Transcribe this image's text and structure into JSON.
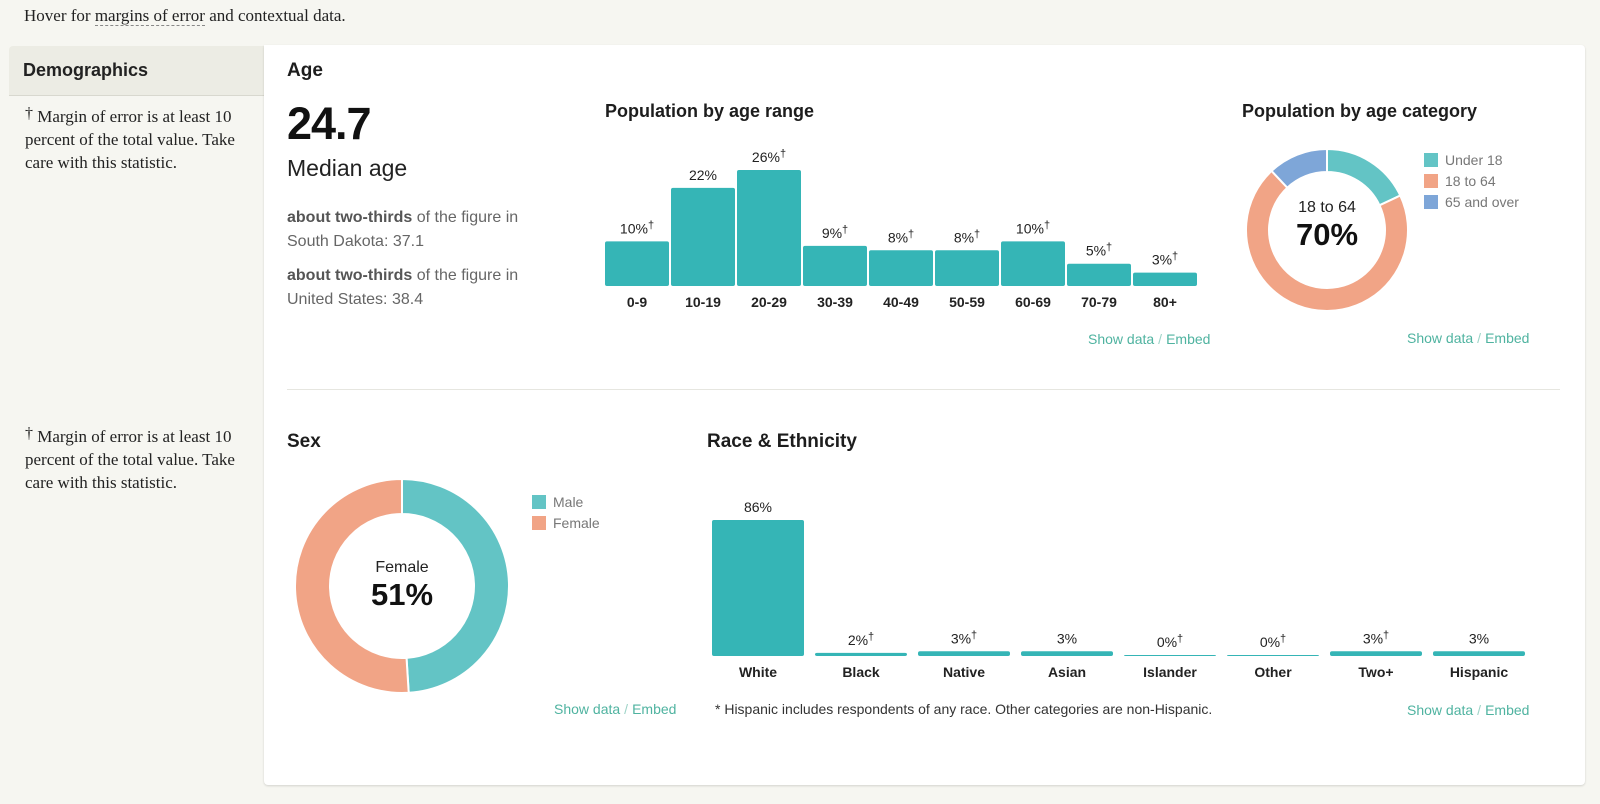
{
  "intro": {
    "prefix": "Hover for ",
    "link": "margins of error",
    "suffix": " and contextual data."
  },
  "sidebar": {
    "title": "Demographics"
  },
  "moe_note": {
    "dagger": "†",
    "text": "Margin of error is at least 10 percent of the total value. Take care with this statistic."
  },
  "age": {
    "title": "Age",
    "median_value": "24.7",
    "median_label": "Median age",
    "comparisons": [
      {
        "bold": "about two-thirds",
        "rest": " of the figure in South Dakota: 37.1"
      },
      {
        "bold": "about two-thirds",
        "rest": " of the figure in United States: 38.4"
      }
    ]
  },
  "links": {
    "show_data": "Show data",
    "separator": "/",
    "embed": "Embed"
  },
  "sex": {
    "title": "Sex",
    "center_label": "Female",
    "center_value": "51%"
  },
  "race": {
    "title": "Race & Ethnicity",
    "footnote": "* Hispanic includes respondents of any race. Other categories are non-Hispanic."
  },
  "age_category": {
    "title": "Population by age category",
    "center_label": "18 to 64",
    "center_value": "70%"
  },
  "colors": {
    "teal": "#35b5b6",
    "teal_light": "#63c4c5",
    "salmon": "#f1a486",
    "blue": "#7ea6d8",
    "link": "#4fb3a0"
  },
  "chart_data": [
    {
      "type": "bar",
      "title": "Population by age range",
      "categories": [
        "0-9",
        "10-19",
        "20-29",
        "30-39",
        "40-49",
        "50-59",
        "60-69",
        "70-79",
        "80+"
      ],
      "values": [
        10,
        22,
        26,
        9,
        8,
        8,
        10,
        5,
        3
      ],
      "labels": [
        "10%",
        "22%",
        "26%",
        "9%",
        "8%",
        "8%",
        "10%",
        "5%",
        "3%"
      ],
      "dagger": [
        true,
        false,
        true,
        true,
        true,
        true,
        true,
        true,
        true
      ],
      "ylim": [
        0,
        26
      ]
    },
    {
      "type": "pie",
      "title": "Population by age category",
      "categories": [
        "Under 18",
        "18 to 64",
        "65 and over"
      ],
      "values": [
        18,
        70,
        12
      ],
      "colors": [
        "#63c4c5",
        "#f1a486",
        "#7ea6d8"
      ]
    },
    {
      "type": "pie",
      "title": "Sex",
      "categories": [
        "Male",
        "Female"
      ],
      "values": [
        49,
        51
      ],
      "colors": [
        "#63c4c5",
        "#f1a486"
      ]
    },
    {
      "type": "bar",
      "title": "Race & Ethnicity",
      "categories": [
        "White",
        "Black",
        "Native",
        "Asian",
        "Islander",
        "Other",
        "Two+",
        "Hispanic"
      ],
      "values": [
        86,
        2,
        3,
        3,
        0,
        0,
        3,
        3
      ],
      "labels": [
        "86%",
        "2%",
        "3%",
        "3%",
        "0%",
        "0%",
        "3%",
        "3%"
      ],
      "dagger": [
        false,
        true,
        true,
        false,
        true,
        true,
        true,
        false
      ],
      "ylim": [
        0,
        86
      ]
    }
  ]
}
